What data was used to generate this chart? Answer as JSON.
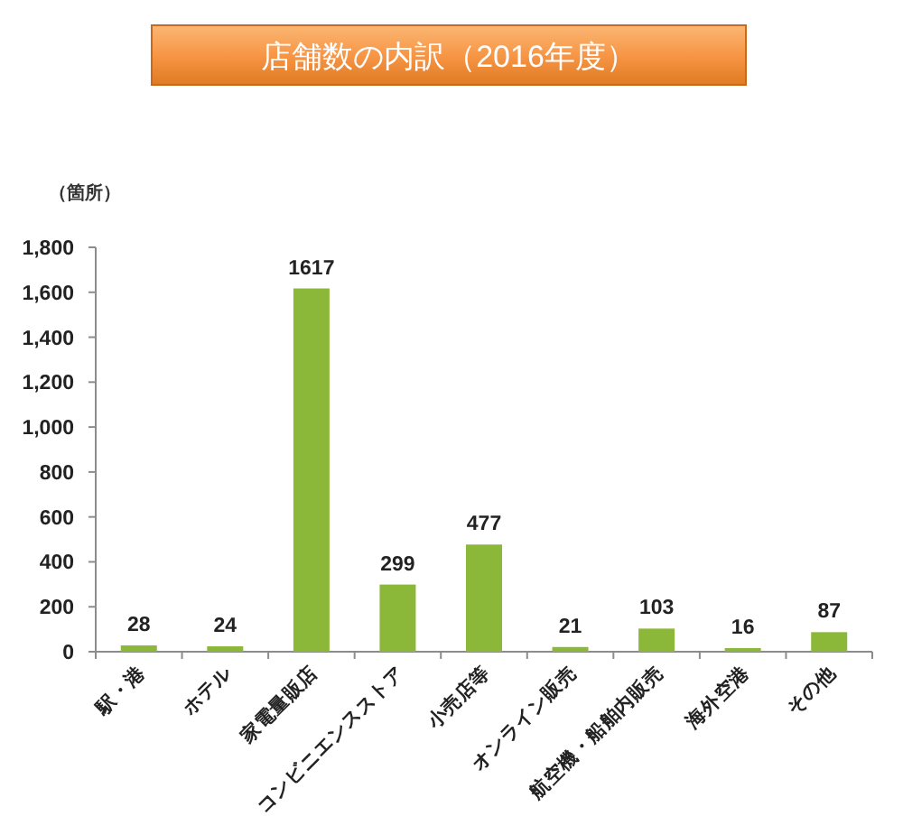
{
  "chart_data": {
    "type": "bar",
    "title": "店舗数の内訳（2016年度）",
    "ylabel": "（箇所）",
    "categories": [
      "駅・港",
      "ホテル",
      "家電量販店",
      "コンビニエンスストア",
      "小売店等",
      "オンライン販売",
      "航空機・船舶内販売",
      "海外空港",
      "その他"
    ],
    "values": [
      28,
      24,
      1617,
      299,
      477,
      21,
      103,
      16,
      87
    ],
    "color": "#8cb83a",
    "ylim": [
      0,
      1800
    ],
    "yticks": [
      0,
      200,
      400,
      600,
      800,
      {
        "value": 1000,
        "label": "1,000"
      },
      {
        "value": 1200,
        "label": "1,200"
      },
      {
        "value": 1400,
        "label": "1,400"
      },
      {
        "value": 1600,
        "label": "1,600"
      },
      {
        "value": 1800,
        "label": "1,800"
      }
    ],
    "data_labels": true
  }
}
